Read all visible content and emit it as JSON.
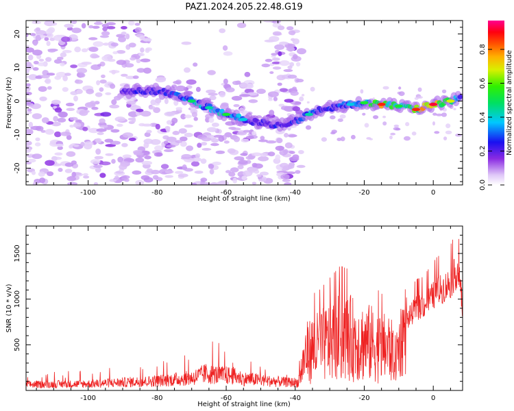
{
  "title": "PAZ1.2024.205.22.48.G19",
  "colors": {
    "snr_line": "#ee2222",
    "ridge": "#3a00d8",
    "background_blobs": "#c7a6f4"
  },
  "chart_data": [
    {
      "type": "heatmap",
      "xlabel": "Height of straight line (km)",
      "ylabel": "Frequency (Hz)",
      "xlim": [
        -118,
        8.5
      ],
      "ylim": [
        -25,
        24
      ],
      "xticks": [
        -100,
        -80,
        -60,
        -40,
        -20,
        0
      ],
      "yticks": [
        -20,
        -10,
        0,
        10,
        20
      ],
      "colorbar": {
        "label": "Normalized spectral amplitude",
        "range": [
          0,
          0.97
        ],
        "ticks": [
          0.0,
          0.2,
          0.4,
          0.6,
          0.8
        ],
        "colormap": "white-purple-blue-cyan-green-yellow-orange-red-pink"
      },
      "ridge": {
        "x": [
          -90,
          -85,
          -80,
          -75,
          -70,
          -65,
          -60,
          -55,
          -50,
          -45,
          -40,
          -36,
          -32,
          -28,
          -24,
          -20,
          -15,
          -10,
          -5,
          0,
          5,
          8
        ],
        "y": [
          3,
          3,
          3,
          2,
          0,
          -2,
          -4,
          -5.5,
          -6.5,
          -7,
          -6,
          -4,
          -2.5,
          -1.5,
          -1,
          -0.5,
          -1,
          -1.5,
          -2.5,
          -1,
          0,
          1
        ],
        "amplitude": [
          0.25,
          0.3,
          0.3,
          0.35,
          0.5,
          0.45,
          0.55,
          0.4,
          0.35,
          0.3,
          0.35,
          0.45,
          0.3,
          0.35,
          0.4,
          0.55,
          0.9,
          0.55,
          0.9,
          0.95,
          0.7,
          0.35
        ]
      },
      "noise_region": {
        "x_range": [
          -118,
          -38
        ],
        "amplitude": 0.1
      }
    },
    {
      "type": "line",
      "xlabel": "Height of straight line (km)",
      "ylabel": "SNR (10 * v/v)",
      "xlim": [
        -118,
        8.5
      ],
      "ylim": [
        0,
        1800
      ],
      "xticks": [
        -100,
        -80,
        -60,
        -40,
        -20,
        0
      ],
      "yticks": [
        500,
        1000,
        1500
      ],
      "envelope": {
        "x": [
          -118,
          -100,
          -90,
          -80,
          -70,
          -66,
          -62,
          -58,
          -55,
          -52,
          -48,
          -45,
          -42,
          -39,
          -37,
          -35,
          -33,
          -30,
          -27,
          -24,
          -21,
          -18,
          -15,
          -13,
          -11,
          -9,
          -7,
          -5,
          -3,
          -1,
          1,
          3,
          5,
          7,
          8,
          8.5
        ],
        "y": [
          80,
          90,
          110,
          130,
          170,
          230,
          210,
          200,
          160,
          150,
          130,
          120,
          110,
          110,
          420,
          480,
          500,
          560,
          620,
          600,
          560,
          540,
          480,
          500,
          380,
          680,
          800,
          900,
          920,
          1000,
          1080,
          1120,
          1180,
          1320,
          1100,
          850
        ]
      }
    }
  ]
}
